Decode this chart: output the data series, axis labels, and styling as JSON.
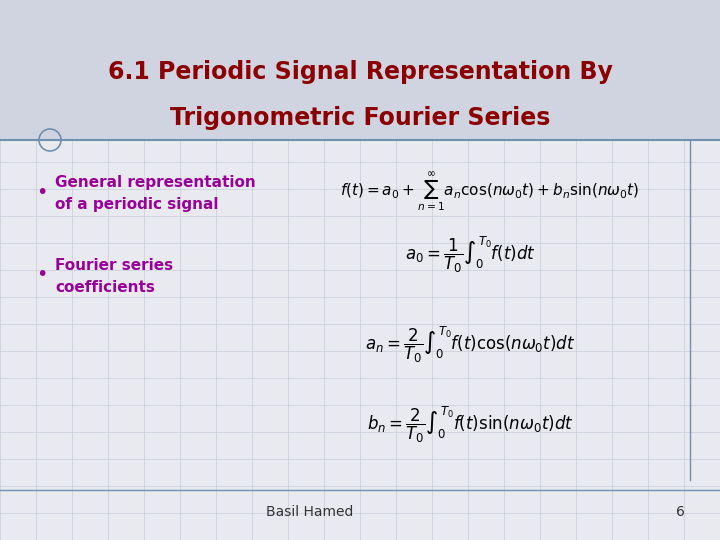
{
  "background_color": "#e8eaf0",
  "grid_color": "#c8ccd8",
  "title_bg_color": "#d0d4e0",
  "title_line1": "6.1 Periodic Signal Representation By",
  "title_line2": "Trigonometric Fourier Series",
  "title_color": "#8b0000",
  "title_fontsize": 17,
  "bullet_color": "#990099",
  "bullet1_text1": "General representation",
  "bullet1_text2": "of a periodic signal",
  "bullet2_text1": "Fourier series",
  "bullet2_text2": "coefficients",
  "formula_color": "#000000",
  "footer_text": "Basil Hamed",
  "footer_number": "6",
  "footer_color": "#333333",
  "divider_color": "#7090b0",
  "bullet_fontsize": 11,
  "formula_fontsize": 11
}
